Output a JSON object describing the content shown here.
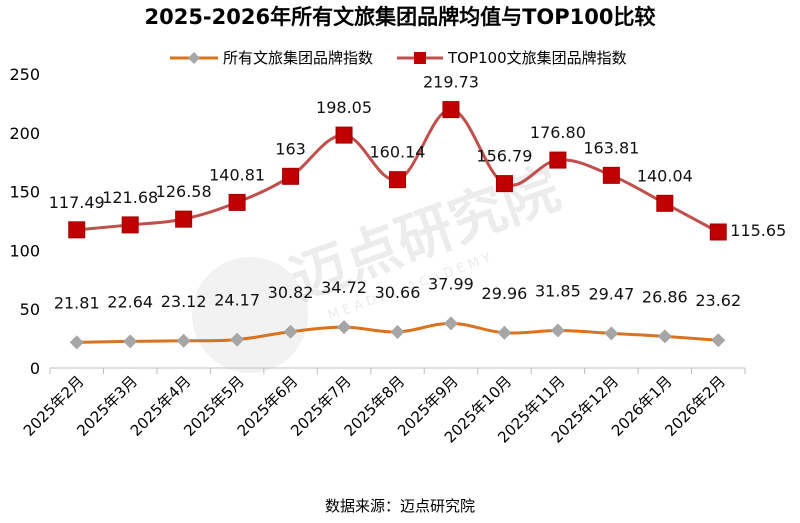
{
  "chart_data": {
    "type": "line",
    "title": "2025-2026年所有文旅集团品牌均值与TOP100比较",
    "categories": [
      "2025年2月",
      "2025年3月",
      "2025年4月",
      "2025年5月",
      "2025年6月",
      "2025年7月",
      "2025年8月",
      "2025年9月",
      "2025年10月",
      "2025年11月",
      "2025年12月",
      "2026年1月",
      "2026年2月"
    ],
    "series": [
      {
        "name": "所有文旅集团品牌指数",
        "color": "#D9731F",
        "marker": "diamond",
        "marker_color": "#A6A6A6",
        "values": [
          21.81,
          22.64,
          23.12,
          24.17,
          30.82,
          34.72,
          30.66,
          37.99,
          29.96,
          31.85,
          29.47,
          26.86,
          23.62
        ],
        "labels": [
          "21.81",
          "22.64",
          "23.12",
          "24.17",
          "30.82",
          "34.72",
          "30.66",
          "37.99",
          "29.96",
          "31.85",
          "29.47",
          "26.86",
          "23.62"
        ]
      },
      {
        "name": "TOP100文旅集团品牌指数",
        "color": "#C0504D",
        "marker": "square",
        "marker_color": "#C00000",
        "values": [
          117.49,
          121.68,
          126.58,
          140.81,
          163,
          198.05,
          160.14,
          219.73,
          156.79,
          176.8,
          163.81,
          140.04,
          115.65
        ],
        "labels": [
          "117.49",
          "121.68",
          "126.58",
          "140.81",
          "163",
          "198.05",
          "160.14",
          "219.73",
          "156.79",
          "176.80",
          "163.81",
          "140.04",
          "115.65"
        ]
      }
    ],
    "ylim": [
      0,
      250
    ],
    "yticks": [
      0,
      50,
      100,
      150,
      200,
      250
    ],
    "xlabel": "",
    "ylabel": "",
    "grid": false,
    "legend_position": "top"
  },
  "source": "数据来源：迈点研究院",
  "watermark": {
    "name": "迈点研究院",
    "sub": "MEADIN ACADEMY"
  }
}
